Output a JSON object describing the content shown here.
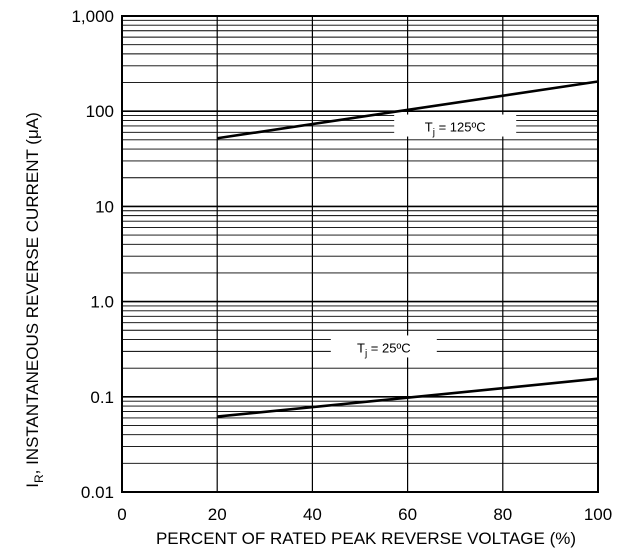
{
  "chart_data": {
    "type": "line",
    "xlabel": "PERCENT OF RATED PEAK REVERSE VOLTAGE (%)",
    "ylabel_main": "I",
    "ylabel_sub": "R",
    "ylabel_rest": ", INSTANTANEOUS REVERSE CURRENT (μA)",
    "xlim": [
      0,
      100
    ],
    "ylim": [
      0.01,
      1000
    ],
    "y_scale": "log",
    "grid": true,
    "x_ticks": [
      0,
      20,
      40,
      60,
      80,
      100
    ],
    "x_tick_labels": [
      "0",
      "20",
      "40",
      "60",
      "80",
      "100"
    ],
    "y_ticks": [
      0.01,
      0.1,
      1,
      10,
      100,
      1000
    ],
    "y_tick_labels": [
      "0.01",
      "0.1",
      "1.0",
      "10",
      "100",
      "1,000"
    ],
    "series": [
      {
        "label_main": "T",
        "label_sub": "j",
        "label_rest": " = 125ºC",
        "x": [
          20,
          100
        ],
        "y": [
          52,
          205
        ],
        "label_at": [
          70,
          69
        ]
      },
      {
        "label_main": "T",
        "label_sub": "j",
        "label_rest": " = 25ºC",
        "x": [
          20,
          100
        ],
        "y": [
          0.062,
          0.155
        ],
        "label_at": [
          55,
          0.33
        ]
      }
    ]
  }
}
